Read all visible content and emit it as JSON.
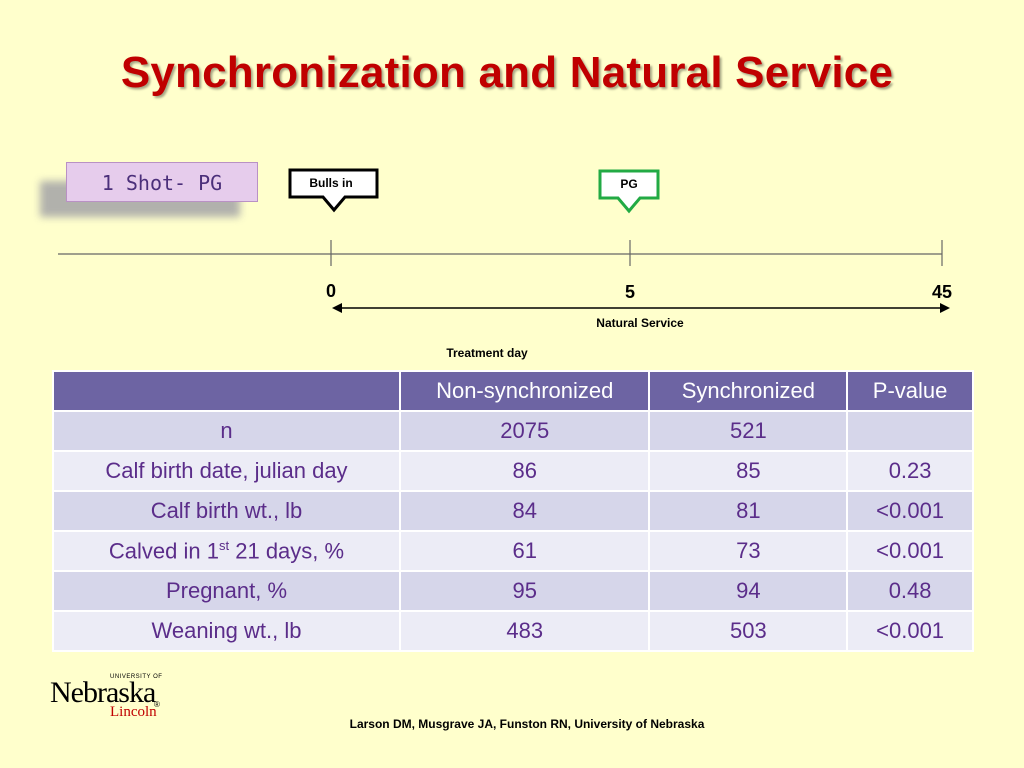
{
  "slide": {
    "title": "Synchronization and Natural Service",
    "protocol_label": "1 Shot- PG",
    "footer": "Larson DM, Musgrave JA, Funston RN, University of Nebraska"
  },
  "timeline": {
    "bulls_in_label": "Bulls in",
    "pg_label": "PG",
    "days": [
      {
        "label": "0"
      },
      {
        "label": "5"
      },
      {
        "label": "45"
      }
    ],
    "natural_service_label": "Natural Service",
    "axis_label": "Treatment day",
    "colors": {
      "bulls_in_border": "#000000",
      "pg_border": "#22aa44"
    }
  },
  "table": {
    "headers": [
      "",
      "Non-synchronized",
      "Synchronized",
      "P-value"
    ],
    "rows": [
      {
        "label": "n",
        "nonsync": "2075",
        "sync": "521",
        "p": ""
      },
      {
        "label": "Calf birth date, julian day",
        "nonsync": "86",
        "sync": "85",
        "p": "0.23"
      },
      {
        "label": "Calf birth wt., lb",
        "nonsync": "84",
        "sync": "81",
        "p": "<0.001"
      },
      {
        "label_pre": "Calved in 1",
        "label_sup": "st",
        "label_post": " 21 days, %",
        "nonsync": "61",
        "sync": "73",
        "p": "<0.001"
      },
      {
        "label": "Pregnant, %",
        "nonsync": "95",
        "sync": "94",
        "p": "0.48"
      },
      {
        "label": "Weaning wt., lb",
        "nonsync": "483",
        "sync": "503",
        "p": "<0.001"
      }
    ]
  },
  "logo": {
    "university_of": "UNIVERSITY OF",
    "name": "Nebraska",
    "campus": "Lincoln",
    "registered": "®"
  },
  "colors": {
    "background": "#ffffcc",
    "title": "#c00000",
    "header_bg": "#6d64a3",
    "row_odd": "#d6d6ea",
    "row_even": "#ececf6",
    "cell_text": "#5b2d8a"
  }
}
